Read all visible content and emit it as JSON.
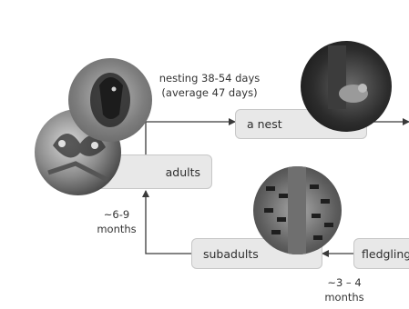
{
  "stages": {
    "adults": "adults",
    "nest": "a nest",
    "subadults": "subadults",
    "fledglings": "fledgling"
  },
  "durations": {
    "nesting_line1": "nesting 38-54 days",
    "nesting_line2": "(average 47 days)",
    "adult_maturity_line1": "~6-9",
    "adult_maturity_line2": "months",
    "fledgling_line1": "~3 – 4",
    "fledgling_line2": "months"
  },
  "photos": [
    "bird-in-nest-cavity-photo",
    "butterfly-photo",
    "chick-in-nest-photo",
    "birds-on-tree-trunk-photo"
  ],
  "colors": {
    "box_fill": "#e8e8e8",
    "box_border": "#c7c7c7",
    "arrow": "#3a3a3a",
    "text": "#333333"
  }
}
